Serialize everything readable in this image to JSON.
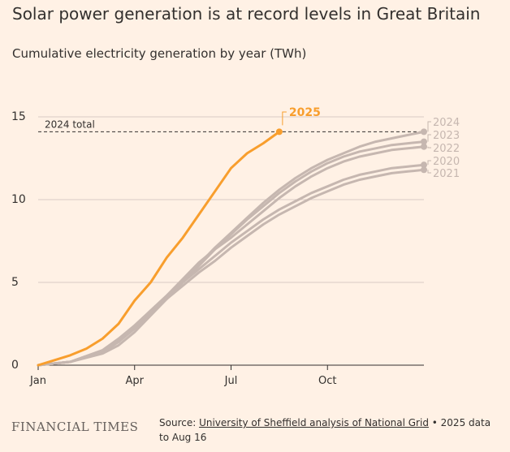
{
  "title": "Solar power generation is at record levels in Great Britain",
  "subtitle": "Cumulative electricity generation by year (TWh)",
  "footer": {
    "brand": "FINANCIAL TIMES",
    "source_prefix": "Source: ",
    "source_link": "University of Sheffield analysis of National Grid",
    "source_suffix": " • 2025 data to Aug 16"
  },
  "colors": {
    "background": "#fff1e5",
    "highlight": "#f89e2d",
    "context": "#c6b7b0",
    "grid": "#d8ccc5",
    "axis": "#33302e"
  },
  "chart_data": {
    "type": "line",
    "title": "Solar power generation is at record levels in Great Britain",
    "subtitle": "Cumulative electricity generation by year (TWh)",
    "xlabel": "",
    "ylabel": "",
    "x_unit": "month of year (1 = Jan 1)",
    "xlim": [
      1,
      13
    ],
    "ylim": [
      0,
      15
    ],
    "x_ticks": [
      {
        "value": 1,
        "label": "Jan"
      },
      {
        "value": 4,
        "label": "Apr"
      },
      {
        "value": 7,
        "label": "Jul"
      },
      {
        "value": 10,
        "label": "Oct"
      }
    ],
    "y_ticks": [
      0,
      5,
      10,
      15
    ],
    "grid": true,
    "annotation": {
      "label": "2024 total",
      "value": 14.1
    },
    "series": [
      {
        "name": "2025",
        "highlight": true,
        "x": [
          1,
          1.5,
          2,
          2.5,
          3,
          3.5,
          4,
          4.5,
          5,
          5.5,
          6,
          6.5,
          7,
          7.5,
          8,
          8.5
        ],
        "y": [
          0,
          0.3,
          0.6,
          1.0,
          1.6,
          2.5,
          3.9,
          5.0,
          6.5,
          7.7,
          9.1,
          10.5,
          11.9,
          12.8,
          13.4,
          14.1
        ]
      },
      {
        "name": "2024",
        "x": [
          1,
          2,
          3,
          3.5,
          4,
          4.5,
          5,
          5.5,
          6,
          6.5,
          7,
          7.5,
          8,
          8.5,
          9,
          9.5,
          10,
          10.5,
          11,
          11.5,
          12,
          12.5,
          13
        ],
        "y": [
          0,
          0.2,
          0.8,
          1.4,
          2.2,
          3.1,
          4.1,
          5.1,
          6.1,
          7.1,
          8.0,
          8.9,
          9.8,
          10.6,
          11.3,
          11.9,
          12.4,
          12.8,
          13.2,
          13.5,
          13.7,
          13.9,
          14.1
        ]
      },
      {
        "name": "2023",
        "x": [
          1,
          2,
          3,
          3.5,
          4,
          4.5,
          5,
          5.5,
          6,
          6.5,
          7,
          7.5,
          8,
          8.5,
          9,
          9.5,
          10,
          10.5,
          11,
          11.5,
          12,
          12.5,
          13
        ],
        "y": [
          0,
          0.2,
          0.9,
          1.5,
          2.3,
          3.1,
          4.0,
          5.0,
          6.0,
          7.0,
          7.9,
          8.8,
          9.6,
          10.4,
          11.1,
          11.7,
          12.2,
          12.6,
          12.9,
          13.1,
          13.3,
          13.4,
          13.5
        ]
      },
      {
        "name": "2022",
        "x": [
          1,
          2,
          3,
          3.5,
          4,
          4.5,
          5,
          5.5,
          6,
          6.5,
          7,
          7.5,
          8,
          8.5,
          9,
          9.5,
          10,
          10.5,
          11,
          11.5,
          12,
          12.5,
          13
        ],
        "y": [
          0,
          0.2,
          0.9,
          1.6,
          2.4,
          3.3,
          4.2,
          5.2,
          6.2,
          7.0,
          7.7,
          8.5,
          9.3,
          10.1,
          10.8,
          11.4,
          11.9,
          12.3,
          12.6,
          12.8,
          13.0,
          13.1,
          13.2
        ]
      },
      {
        "name": "2020",
        "x": [
          1,
          2,
          3,
          3.5,
          4,
          4.5,
          5,
          5.5,
          6,
          6.5,
          7,
          7.5,
          8,
          8.5,
          9,
          9.5,
          10,
          10.5,
          11,
          11.5,
          12,
          12.5,
          13
        ],
        "y": [
          0,
          0.2,
          0.8,
          1.4,
          2.3,
          3.3,
          4.2,
          5.0,
          5.8,
          6.6,
          7.4,
          8.1,
          8.8,
          9.4,
          9.9,
          10.4,
          10.8,
          11.2,
          11.5,
          11.7,
          11.9,
          12.0,
          12.1
        ]
      },
      {
        "name": "2021",
        "x": [
          1,
          2,
          3,
          3.5,
          4,
          4.5,
          5,
          5.5,
          6,
          6.5,
          7,
          7.5,
          8,
          8.5,
          9,
          9.5,
          10,
          10.5,
          11,
          11.5,
          12,
          12.5,
          13
        ],
        "y": [
          0,
          0.2,
          0.7,
          1.2,
          2.0,
          3.0,
          4.0,
          4.8,
          5.6,
          6.3,
          7.1,
          7.8,
          8.5,
          9.1,
          9.6,
          10.1,
          10.5,
          10.9,
          11.2,
          11.4,
          11.6,
          11.7,
          11.8
        ]
      }
    ]
  }
}
